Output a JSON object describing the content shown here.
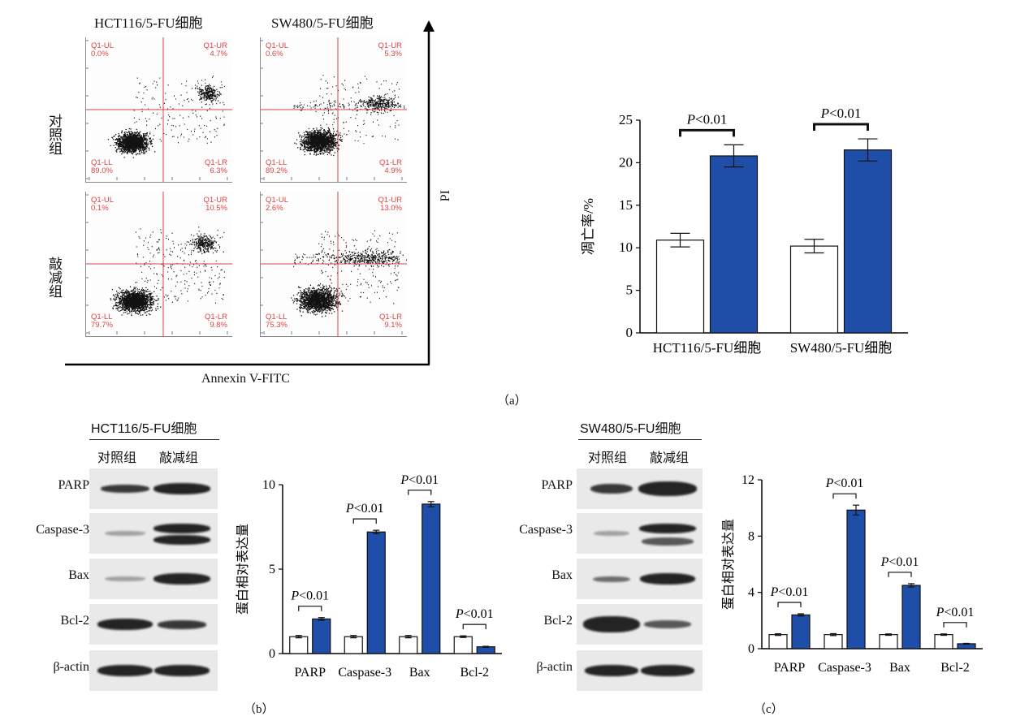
{
  "panel_a": {
    "col_titles": [
      "HCT116/5-FU细胞",
      "SW480/5-FU细胞"
    ],
    "row_labels": [
      "对照组",
      "敲减组"
    ],
    "x_axis_label": "Annexin V-FITC",
    "y_axis_label": "PI",
    "flow_panels": [
      {
        "ul_name": "Q1-UL",
        "ul_val": "0.0%",
        "ur_name": "Q1-UR",
        "ur_val": "4.7%",
        "ll_name": "Q1-LL",
        "ll_val": "89.0%",
        "lr_name": "Q1-LR",
        "lr_val": "6.3%"
      },
      {
        "ul_name": "Q1-UL",
        "ul_val": "0.6%",
        "ur_name": "Q1-UR",
        "ur_val": "5.3%",
        "ll_name": "Q1-LL",
        "ll_val": "89.2%",
        "lr_name": "Q1-LR",
        "lr_val": "4.9%"
      },
      {
        "ul_name": "Q1-UL",
        "ul_val": "0.1%",
        "ur_name": "Q1-UR",
        "ur_val": "10.5%",
        "ll_name": "Q1-LL",
        "ll_val": "79.7%",
        "lr_name": "Q1-LR",
        "lr_val": "9.8%"
      },
      {
        "ul_name": "Q1-UL",
        "ul_val": "2.6%",
        "ur_name": "Q1-UR",
        "ur_val": "13.0%",
        "ll_name": "Q1-LL",
        "ll_val": "75.3%",
        "lr_name": "Q1-LR",
        "lr_val": "9.1%"
      }
    ],
    "panel_label": "（a）"
  },
  "panel_b": {
    "cell_line": "HCT116/5-FU细胞",
    "groups": [
      "对照组",
      "敲减组"
    ],
    "proteins": [
      "PARP",
      "Caspase-3",
      "Bax",
      "Bcl-2",
      "β-actin"
    ],
    "panel_label": "（b）"
  },
  "panel_c": {
    "cell_line": "SW480/5-FU细胞",
    "groups": [
      "对照组",
      "敲减组"
    ],
    "proteins": [
      "PARP",
      "Caspase-3",
      "Bax",
      "Bcl-2",
      "β-actin"
    ],
    "panel_label": "（c）"
  },
  "colors": {
    "knockdown": "#1f4ea8",
    "control": "#ffffff",
    "quadrant_line": "#d44444",
    "quadrant_text": "#d44444"
  },
  "chart_data": [
    {
      "id": "apoptosis",
      "type": "bar",
      "categories": [
        "HCT116/5-FU细胞",
        "SW480/5-FU细胞"
      ],
      "ylabel": "凋亡率/%",
      "ylim": [
        0,
        25
      ],
      "yticks": [
        0,
        5,
        10,
        15,
        20,
        25
      ],
      "series": [
        {
          "values": [
            10.9,
            10.2
          ],
          "errors": [
            0.8,
            0.8
          ],
          "color": "#ffffff"
        },
        {
          "values": [
            20.8,
            21.5
          ],
          "errors": [
            1.3,
            1.3
          ],
          "color": "#1f4ea8"
        }
      ],
      "annotations": [
        "P<0.01",
        "P<0.01"
      ]
    },
    {
      "id": "protein_hct116",
      "type": "bar",
      "categories": [
        "PARP",
        "Caspase-3",
        "Bax",
        "Bcl-2"
      ],
      "ylabel": "蛋白相对表达量",
      "ylim": [
        0,
        10
      ],
      "yticks": [
        0,
        5,
        10
      ],
      "series": [
        {
          "values": [
            1.0,
            1.0,
            1.0,
            1.0
          ],
          "errors": [
            0.07,
            0.07,
            0.07,
            0.05
          ],
          "color": "#ffffff"
        },
        {
          "values": [
            2.05,
            7.2,
            8.85,
            0.4
          ],
          "errors": [
            0.08,
            0.1,
            0.15,
            0.03
          ],
          "color": "#1f4ea8"
        }
      ],
      "annotations": [
        "P<0.01",
        "P<0.01",
        "P<0.01",
        "P<0.01"
      ]
    },
    {
      "id": "protein_sw480",
      "type": "bar",
      "categories": [
        "PARP",
        "Caspase-3",
        "Bax",
        "Bcl-2"
      ],
      "ylabel": "蛋白相对表达量",
      "ylim": [
        0,
        12
      ],
      "yticks": [
        0,
        4,
        8,
        12
      ],
      "series": [
        {
          "values": [
            1.0,
            1.0,
            1.0,
            1.0
          ],
          "errors": [
            0.06,
            0.07,
            0.05,
            0.05
          ],
          "color": "#ffffff"
        },
        {
          "values": [
            2.4,
            9.85,
            4.5,
            0.35
          ],
          "errors": [
            0.08,
            0.35,
            0.12,
            0.03
          ],
          "color": "#1f4ea8"
        }
      ],
      "annotations": [
        "P<0.01",
        "P<0.01",
        "P<0.01",
        "P<0.01"
      ]
    }
  ]
}
